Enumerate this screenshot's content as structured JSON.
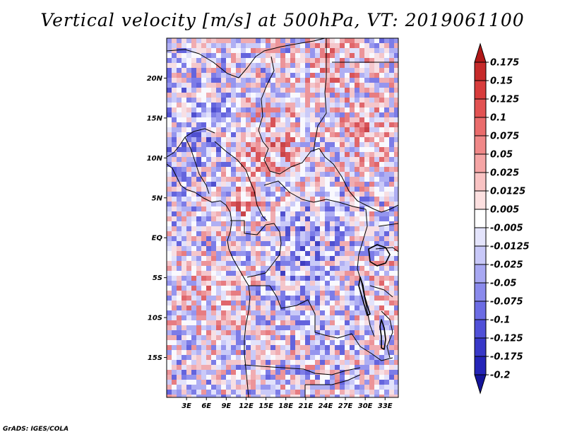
{
  "title": "Vertical velocity [m/s] at 500hPa, VT: 2019061100",
  "credit": "GrADS: IGES/COLA",
  "map": {
    "lon_range": [
      0,
      35
    ],
    "lat_range": [
      -20,
      25
    ],
    "lat_ticks": [
      {
        "value": 20,
        "label": "20N"
      },
      {
        "value": 15,
        "label": "15N"
      },
      {
        "value": 10,
        "label": "10N"
      },
      {
        "value": 5,
        "label": "5N"
      },
      {
        "value": 0,
        "label": "EQ"
      },
      {
        "value": -5,
        "label": "5S"
      },
      {
        "value": -10,
        "label": "10S"
      },
      {
        "value": -15,
        "label": "15S"
      }
    ],
    "lon_ticks": [
      {
        "value": 3,
        "label": "3E"
      },
      {
        "value": 6,
        "label": "6E"
      },
      {
        "value": 9,
        "label": "9E"
      },
      {
        "value": 12,
        "label": "12E"
      },
      {
        "value": 15,
        "label": "15E"
      },
      {
        "value": 18,
        "label": "18E"
      },
      {
        "value": 21,
        "label": "21E"
      },
      {
        "value": 24,
        "label": "24E"
      },
      {
        "value": 27,
        "label": "27E"
      },
      {
        "value": 30,
        "label": "30E"
      },
      {
        "value": 33,
        "label": "33E"
      }
    ]
  },
  "colorbar": {
    "labels": [
      "0.175",
      "0.15",
      "0.125",
      "0.1",
      "0.075",
      "0.05",
      "0.025",
      "0.0125",
      "0.005",
      "-0.005",
      "-0.0125",
      "-0.025",
      "-0.05",
      "-0.075",
      "-0.1",
      "-0.125",
      "-0.175",
      "-0.2"
    ],
    "colors": [
      "#b01818",
      "#c62a2a",
      "#d83c3c",
      "#e25252",
      "#ea6c6c",
      "#f08888",
      "#f5a5a5",
      "#f9c3c3",
      "#fde0e0",
      "#ffffff",
      "#e4e4fc",
      "#c8c8f8",
      "#a8a8f2",
      "#8a8aec",
      "#6c6ce4",
      "#5050d8",
      "#3838c8",
      "#2424b8",
      "#14149a"
    ]
  }
}
